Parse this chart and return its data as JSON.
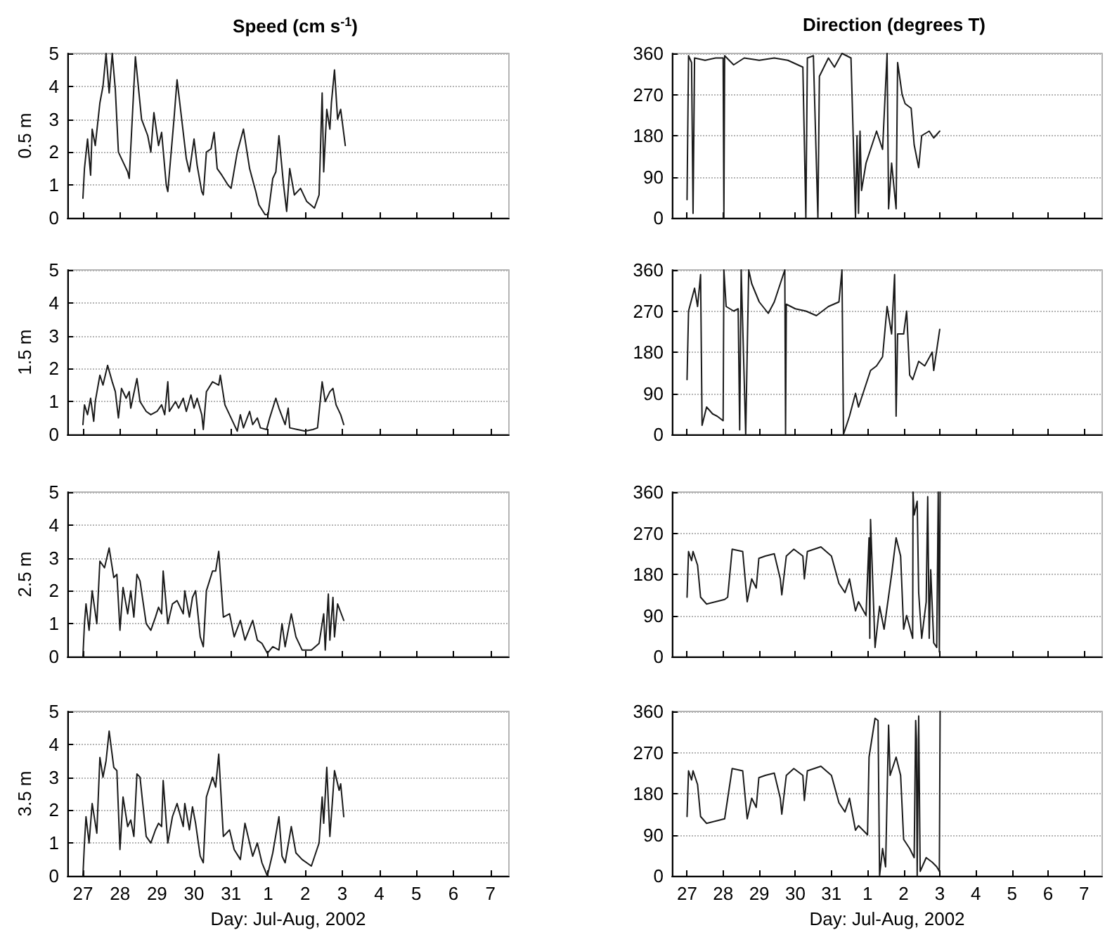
{
  "chart_data": [
    {
      "type": "line",
      "title": "Speed (cm s$^{-1}$)",
      "ylabel": "0.5 m",
      "xlim": [
        "2002-07-26T14:00",
        "2002-08-07T12:00"
      ],
      "ylim": [
        0,
        5
      ],
      "yticks": [
        0,
        1,
        2,
        3,
        4,
        5
      ],
      "xticks": [
        {
          "value": "2002-07-27",
          "label": null
        },
        {
          "value": "2002-07-28",
          "label": null
        },
        {
          "value": "2002-07-29",
          "label": null
        },
        {
          "value": "2002-07-30",
          "label": null
        },
        {
          "value": "2002-07-31",
          "label": null
        },
        {
          "value": "2002-08-01",
          "label": null
        },
        {
          "value": "2002-08-02",
          "label": null
        },
        {
          "value": "2002-08-03",
          "label": null
        },
        {
          "value": "2002-08-04",
          "label": null
        },
        {
          "value": "2002-08-05",
          "label": null
        },
        {
          "value": "2002-08-06",
          "label": null
        },
        {
          "value": "2002-08-07",
          "label": null
        }
      ],
      "tick_labels": "y",
      "grid": "y",
      "marker": "none",
      "series": [
        {
          "color": "#1a1a1a",
          "x": [
            "2002-07-27T00:00",
            "2002-07-27T01:00",
            "2002-07-27T03:00",
            "2002-07-27T05:00",
            "2002-07-27T06:00",
            "2002-07-27T08:00",
            "2002-07-27T11:00",
            "2002-07-27T13:00",
            "2002-07-27T15:00",
            "2002-07-27T17:00",
            "2002-07-27T19:00",
            "2002-07-27T21:00",
            "2002-07-27T23:00",
            "2002-07-28T02:00",
            "2002-07-28T05:00",
            "2002-07-28T06:00",
            "2002-07-28T10:00",
            "2002-07-28T14:00",
            "2002-07-28T18:00",
            "2002-07-28T20:00",
            "2002-07-28T22:00",
            "2002-07-29T01:00",
            "2002-07-29T03:00",
            "2002-07-29T06:00",
            "2002-07-29T07:00",
            "2002-07-29T11:00",
            "2002-07-29T13:00",
            "2002-07-29T16:00",
            "2002-07-29T19:00",
            "2002-07-29T21:00",
            "2002-07-30T00:00",
            "2002-07-30T02:00",
            "2002-07-30T05:00",
            "2002-07-30T06:00",
            "2002-07-30T08:00",
            "2002-07-30T11:00",
            "2002-07-30T13:00",
            "2002-07-30T15:00",
            "2002-07-30T18:00",
            "2002-07-30T22:00",
            "2002-07-31T00:00",
            "2002-07-31T04:00",
            "2002-07-31T08:00",
            "2002-07-31T12:00",
            "2002-07-31T16:00",
            "2002-07-31T18:00",
            "2002-07-31T22:00",
            "2002-08-01T00:00",
            "2002-08-01T03:00",
            "2002-08-01T05:00",
            "2002-08-01T07:00",
            "2002-08-01T10:00",
            "2002-08-01T12:00",
            "2002-08-01T14:00",
            "2002-08-01T17:00",
            "2002-08-01T21:00",
            "2002-08-02T01:00",
            "2002-08-02T06:00",
            "2002-08-02T09:00",
            "2002-08-02T11:00",
            "2002-08-02T12:00",
            "2002-08-02T14:00",
            "2002-08-02T16:00",
            "2002-08-02T17:00",
            "2002-08-02T19:00",
            "2002-08-02T21:00",
            "2002-08-02T23:00",
            "2002-08-03T02:00"
          ],
          "values": [
            0.6,
            1.5,
            2.4,
            1.3,
            2.7,
            2.2,
            3.5,
            4.0,
            5.0,
            3.8,
            5.0,
            3.9,
            2.0,
            1.7,
            1.4,
            1.2,
            4.9,
            3.0,
            2.5,
            2.0,
            3.2,
            2.2,
            2.6,
            1.0,
            0.8,
            3.0,
            4.2,
            3.0,
            1.8,
            1.4,
            2.4,
            1.6,
            0.8,
            0.7,
            2.0,
            2.1,
            2.6,
            1.5,
            1.3,
            1.0,
            0.9,
            2.0,
            2.7,
            1.5,
            0.8,
            0.4,
            0.1,
            0.1,
            1.2,
            1.4,
            2.5,
            1.0,
            0.2,
            1.5,
            0.7,
            0.9,
            0.5,
            0.3,
            0.7,
            3.8,
            1.4,
            3.3,
            2.7,
            3.5,
            4.5,
            3.0,
            3.3,
            2.2
          ]
        }
      ]
    },
    {
      "type": "line",
      "title": "Direction (degrees T)",
      "xlim": [
        "2002-07-26T14:00",
        "2002-08-07T12:00"
      ],
      "ylim": [
        0,
        360
      ],
      "yticks": [
        0,
        90,
        180,
        270,
        360
      ],
      "xticks": [
        {
          "value": "2002-07-27",
          "label": null
        },
        {
          "value": "2002-07-28",
          "label": null
        },
        {
          "value": "2002-07-29",
          "label": null
        },
        {
          "value": "2002-07-30",
          "label": null
        },
        {
          "value": "2002-07-31",
          "label": null
        },
        {
          "value": "2002-08-01",
          "label": null
        },
        {
          "value": "2002-08-02",
          "label": null
        },
        {
          "value": "2002-08-03",
          "label": null
        },
        {
          "value": "2002-08-04",
          "label": null
        },
        {
          "value": "2002-08-05",
          "label": null
        },
        {
          "value": "2002-08-06",
          "label": null
        },
        {
          "value": "2002-08-07",
          "label": null
        }
      ],
      "tick_labels": "y",
      "grid": "y",
      "marker": "none",
      "series": [
        {
          "color": "#1a1a1a",
          "x": [
            "2002-07-27T00:00",
            "2002-07-27T01:00",
            "2002-07-27T03:00",
            "2002-07-27T04:00",
            "2002-07-27T05:00",
            "2002-07-27T12:00",
            "2002-07-27T19:00",
            "2002-07-28T00:00",
            "2002-07-28T00:30",
            "2002-07-28T01:00",
            "2002-07-28T07:00",
            "2002-07-28T14:00",
            "2002-07-29T00:00",
            "2002-07-29T10:00",
            "2002-07-29T19:00",
            "2002-07-30T05:00",
            "2002-07-30T07:00",
            "2002-07-30T08:00",
            "2002-07-30T12:00",
            "2002-07-30T15:00",
            "2002-07-30T16:00",
            "2002-07-30T22:00",
            "2002-07-31T02:00",
            "2002-07-31T07:00",
            "2002-07-31T13:00",
            "2002-07-31T16:00",
            "2002-07-31T17:00",
            "2002-07-31T18:00",
            "2002-07-31T19:00",
            "2002-07-31T20:00",
            "2002-07-31T23:00",
            "2002-08-01T02:00",
            "2002-08-01T06:00",
            "2002-08-01T10:00",
            "2002-08-01T13:00",
            "2002-08-01T14:00",
            "2002-08-01T16:00",
            "2002-08-01T19:00",
            "2002-08-01T20:00",
            "2002-08-01T23:00",
            "2002-08-02T01:00",
            "2002-08-02T05:00",
            "2002-08-02T07:00",
            "2002-08-02T10:00",
            "2002-08-02T12:00",
            "2002-08-02T17:00",
            "2002-08-02T20:00",
            "2002-08-03T00:00"
          ],
          "values": [
            40,
            355,
            340,
            10,
            350,
            345,
            350,
            350,
            0,
            355,
            335,
            350,
            345,
            350,
            345,
            330,
            0,
            350,
            355,
            0,
            310,
            350,
            330,
            360,
            350,
            0,
            180,
            10,
            190,
            60,
            120,
            150,
            190,
            150,
            360,
            20,
            120,
            20,
            340,
            270,
            250,
            240,
            160,
            110,
            180,
            190,
            175,
            190
          ]
        }
      ]
    },
    {
      "type": "line",
      "ylabel": "1.5 m",
      "xlim": [
        "2002-07-26T14:00",
        "2002-08-07T12:00"
      ],
      "ylim": [
        0,
        5
      ],
      "yticks": [
        0,
        1,
        2,
        3,
        4,
        5
      ],
      "xticks": [
        {
          "value": "2002-07-27",
          "label": null
        },
        {
          "value": "2002-07-28",
          "label": null
        },
        {
          "value": "2002-07-29",
          "label": null
        },
        {
          "value": "2002-07-30",
          "label": null
        },
        {
          "value": "2002-07-31",
          "label": null
        },
        {
          "value": "2002-08-01",
          "label": null
        },
        {
          "value": "2002-08-02",
          "label": null
        },
        {
          "value": "2002-08-03",
          "label": null
        },
        {
          "value": "2002-08-04",
          "label": null
        },
        {
          "value": "2002-08-05",
          "label": null
        },
        {
          "value": "2002-08-06",
          "label": null
        },
        {
          "value": "2002-08-07",
          "label": null
        }
      ],
      "tick_labels": "y",
      "grid": "y",
      "marker": "none",
      "series": [
        {
          "color": "#1a1a1a",
          "x": [
            "2002-07-27T00:00",
            "2002-07-27T01:00",
            "2002-07-27T03:00",
            "2002-07-27T05:00",
            "2002-07-27T07:00",
            "2002-07-27T08:00",
            "2002-07-27T11:00",
            "2002-07-27T13:00",
            "2002-07-27T16:00",
            "2002-07-27T19:00",
            "2002-07-27T21:00",
            "2002-07-27T23:00",
            "2002-07-28T01:00",
            "2002-07-28T04:00",
            "2002-07-28T06:00",
            "2002-07-28T07:00",
            "2002-07-28T11:00",
            "2002-07-28T13:00",
            "2002-07-28T17:00",
            "2002-07-28T20:00",
            "2002-07-29T00:00",
            "2002-07-29T03:00",
            "2002-07-29T05:00",
            "2002-07-29T07:00",
            "2002-07-29T08:00",
            "2002-07-29T12:00",
            "2002-07-29T14:00",
            "2002-07-29T17:00",
            "2002-07-29T19:00",
            "2002-07-29T22:00",
            "2002-07-30T00:00",
            "2002-07-30T02:00",
            "2002-07-30T05:00",
            "2002-07-30T06:00",
            "2002-07-30T08:00",
            "2002-07-30T12:00",
            "2002-07-30T16:00",
            "2002-07-30T17:00",
            "2002-07-30T20:00",
            "2002-07-31T00:00",
            "2002-07-31T04:00",
            "2002-07-31T06:00",
            "2002-07-31T08:00",
            "2002-07-31T12:00",
            "2002-07-31T14:00",
            "2002-07-31T17:00",
            "2002-07-31T19:00",
            "2002-07-31T23:00",
            "2002-08-01T01:00",
            "2002-08-01T05:00",
            "2002-08-01T07:00",
            "2002-08-01T11:00",
            "2002-08-01T13:00",
            "2002-08-01T14:00",
            "2002-08-01T19:00",
            "2002-08-02T00:00",
            "2002-08-02T05:00",
            "2002-08-02T08:00",
            "2002-08-02T11:00",
            "2002-08-02T13:00",
            "2002-08-02T16:00",
            "2002-08-02T18:00",
            "2002-08-02T20:00",
            "2002-08-02T23:00",
            "2002-08-03T01:00"
          ],
          "values": [
            0.3,
            0.9,
            0.6,
            1.1,
            0.4,
            1.0,
            1.8,
            1.5,
            2.1,
            1.6,
            1.3,
            0.5,
            1.4,
            1.1,
            1.3,
            0.8,
            1.7,
            1.0,
            0.7,
            0.6,
            0.7,
            0.9,
            0.6,
            1.6,
            0.7,
            1.0,
            0.8,
            1.1,
            0.7,
            1.2,
            0.8,
            1.1,
            0.6,
            0.15,
            1.3,
            1.6,
            1.5,
            1.8,
            0.9,
            0.5,
            0.1,
            0.6,
            0.2,
            0.7,
            0.3,
            0.5,
            0.2,
            0.15,
            0.5,
            1.1,
            0.8,
            0.3,
            0.8,
            0.2,
            0.15,
            0.1,
            0.15,
            0.2,
            1.6,
            1.0,
            1.3,
            1.4,
            0.9,
            0.6,
            0.3
          ]
        }
      ]
    },
    {
      "type": "line",
      "xlim": [
        "2002-07-26T14:00",
        "2002-08-07T12:00"
      ],
      "ylim": [
        0,
        360
      ],
      "yticks": [
        0,
        90,
        180,
        270,
        360
      ],
      "xticks": [
        {
          "value": "2002-07-27",
          "label": null
        },
        {
          "value": "2002-07-28",
          "label": null
        },
        {
          "value": "2002-07-29",
          "label": null
        },
        {
          "value": "2002-07-30",
          "label": null
        },
        {
          "value": "2002-07-31",
          "label": null
        },
        {
          "value": "2002-08-01",
          "label": null
        },
        {
          "value": "2002-08-02",
          "label": null
        },
        {
          "value": "2002-08-03",
          "label": null
        },
        {
          "value": "2002-08-04",
          "label": null
        },
        {
          "value": "2002-08-05",
          "label": null
        },
        {
          "value": "2002-08-06",
          "label": null
        },
        {
          "value": "2002-08-07",
          "label": null
        }
      ],
      "tick_labels": "y",
      "grid": "y",
      "marker": "none",
      "series": [
        {
          "color": "#1a1a1a",
          "x": [
            "2002-07-27T00:00",
            "2002-07-27T01:00",
            "2002-07-27T05:00",
            "2002-07-27T07:00",
            "2002-07-27T09:00",
            "2002-07-27T10:00",
            "2002-07-27T13:00",
            "2002-07-27T17:00",
            "2002-07-27T20:00",
            "2002-07-28T00:00",
            "2002-07-28T00:30",
            "2002-07-28T02:00",
            "2002-07-28T07:00",
            "2002-07-28T10:00",
            "2002-07-28T11:00",
            "2002-07-28T12:00",
            "2002-07-28T15:00",
            "2002-07-28T17:00",
            "2002-07-28T19:00",
            "2002-07-29T00:00",
            "2002-07-29T06:00",
            "2002-07-29T10:00",
            "2002-07-29T14:00",
            "2002-07-29T17:00",
            "2002-07-29T17:30",
            "2002-07-29T18:00",
            "2002-07-30T00:00",
            "2002-07-30T07:00",
            "2002-07-30T14:00",
            "2002-07-30T22:00",
            "2002-07-31T05:00",
            "2002-07-31T07:00",
            "2002-07-31T08:00",
            "2002-07-31T12:00",
            "2002-07-31T16:00",
            "2002-07-31T18:00",
            "2002-07-31T23:00",
            "2002-08-01T02:00",
            "2002-08-01T06:00",
            "2002-08-01T10:00",
            "2002-08-01T13:00",
            "2002-08-01T16:00",
            "2002-08-01T18:00",
            "2002-08-01T19:00",
            "2002-08-01T20:00",
            "2002-08-02T00:00",
            "2002-08-02T02:00",
            "2002-08-02T04:00",
            "2002-08-02T06:00",
            "2002-08-02T10:00",
            "2002-08-02T14:00",
            "2002-08-02T19:00",
            "2002-08-02T20:00",
            "2002-08-03T00:00"
          ],
          "values": [
            120,
            270,
            320,
            280,
            350,
            20,
            60,
            45,
            40,
            30,
            360,
            280,
            270,
            275,
            10,
            360,
            0,
            360,
            330,
            290,
            265,
            290,
            330,
            360,
            0,
            285,
            275,
            270,
            260,
            280,
            290,
            360,
            0,
            40,
            90,
            60,
            110,
            140,
            150,
            170,
            280,
            220,
            350,
            40,
            220,
            220,
            270,
            130,
            120,
            160,
            150,
            180,
            140,
            230
          ]
        }
      ]
    },
    {
      "type": "line",
      "ylabel": "2.5 m",
      "xlim": [
        "2002-07-26T14:00",
        "2002-08-07T12:00"
      ],
      "ylim": [
        0,
        5
      ],
      "yticks": [
        0,
        1,
        2,
        3,
        4,
        5
      ],
      "xticks": [
        {
          "value": "2002-07-27",
          "label": null
        },
        {
          "value": "2002-07-28",
          "label": null
        },
        {
          "value": "2002-07-29",
          "label": null
        },
        {
          "value": "2002-07-30",
          "label": null
        },
        {
          "value": "2002-07-31",
          "label": null
        },
        {
          "value": "2002-08-01",
          "label": null
        },
        {
          "value": "2002-08-02",
          "label": null
        },
        {
          "value": "2002-08-03",
          "label": null
        },
        {
          "value": "2002-08-04",
          "label": null
        },
        {
          "value": "2002-08-05",
          "label": null
        },
        {
          "value": "2002-08-06",
          "label": null
        },
        {
          "value": "2002-08-07",
          "label": null
        }
      ],
      "tick_labels": "y",
      "grid": "y",
      "marker": "none",
      "series": [
        {
          "color": "#1a1a1a",
          "x": [
            "2002-07-27T00:00",
            "2002-07-27T01:00",
            "2002-07-27T02:00",
            "2002-07-27T04:00",
            "2002-07-27T06:00",
            "2002-07-27T09:00",
            "2002-07-27T11:00",
            "2002-07-27T14:00",
            "2002-07-27T17:00",
            "2002-07-27T20:00",
            "2002-07-27T22:00",
            "2002-07-28T00:00",
            "2002-07-28T02:00",
            "2002-07-28T05:00",
            "2002-07-28T07:00",
            "2002-07-28T09:00",
            "2002-07-28T11:00",
            "2002-07-28T13:00",
            "2002-07-28T17:00",
            "2002-07-28T20:00",
            "2002-07-28T23:00",
            "2002-07-29T01:00",
            "2002-07-29T03:00",
            "2002-07-29T04:00",
            "2002-07-29T07:00",
            "2002-07-29T10:00",
            "2002-07-29T13:00",
            "2002-07-29T17:00",
            "2002-07-29T18:00",
            "2002-07-29T21:00",
            "2002-07-29T23:00",
            "2002-07-30T01:00",
            "2002-07-30T04:00",
            "2002-07-30T06:00",
            "2002-07-30T08:00",
            "2002-07-30T12:00",
            "2002-07-30T14:00",
            "2002-07-30T16:00",
            "2002-07-30T19:00",
            "2002-07-30T23:00",
            "2002-07-31T02:00",
            "2002-07-31T06:00",
            "2002-07-31T09:00",
            "2002-07-31T14:00",
            "2002-07-31T17:00",
            "2002-07-31T20:00",
            "2002-07-31T23:30",
            "2002-08-01T03:00",
            "2002-08-01T07:00",
            "2002-08-01T09:00",
            "2002-08-01T11:00",
            "2002-08-01T15:00",
            "2002-08-01T18:00",
            "2002-08-01T22:00",
            "2002-08-02T04:00",
            "2002-08-02T09:00",
            "2002-08-02T12:00",
            "2002-08-02T13:00",
            "2002-08-02T15:00",
            "2002-08-02T16:00",
            "2002-08-02T18:00",
            "2002-08-02T19:00",
            "2002-08-02T21:00",
            "2002-08-03T01:00"
          ],
          "values": [
            0,
            1.0,
            1.6,
            0.8,
            2.0,
            1.0,
            2.9,
            2.7,
            3.3,
            2.4,
            2.5,
            0.8,
            2.1,
            1.3,
            2.0,
            1.2,
            2.5,
            2.3,
            1.0,
            0.8,
            1.2,
            1.5,
            1.3,
            2.6,
            1.0,
            1.6,
            1.7,
            1.3,
            2.0,
            1.2,
            1.8,
            2.0,
            0.6,
            0.3,
            2.0,
            2.6,
            2.6,
            3.2,
            1.2,
            1.3,
            0.6,
            1.1,
            0.5,
            1.1,
            0.5,
            0.4,
            0.1,
            0.3,
            0.2,
            1.0,
            0.3,
            1.3,
            0.6,
            0.2,
            0.2,
            0.4,
            1.3,
            0.2,
            1.9,
            0.5,
            1.8,
            0.6,
            1.6,
            1.1
          ]
        }
      ]
    },
    {
      "type": "line",
      "xlim": [
        "2002-07-26T14:00",
        "2002-08-07T12:00"
      ],
      "ylim": [
        0,
        360
      ],
      "yticks": [
        0,
        90,
        180,
        270,
        360
      ],
      "xticks": [
        {
          "value": "2002-07-27",
          "label": null
        },
        {
          "value": "2002-07-28",
          "label": null
        },
        {
          "value": "2002-07-29",
          "label": null
        },
        {
          "value": "2002-07-30",
          "label": null
        },
        {
          "value": "2002-07-31",
          "label": null
        },
        {
          "value": "2002-08-01",
          "label": null
        },
        {
          "value": "2002-08-02",
          "label": null
        },
        {
          "value": "2002-08-03",
          "label": null
        },
        {
          "value": "2002-08-04",
          "label": null
        },
        {
          "value": "2002-08-05",
          "label": null
        },
        {
          "value": "2002-08-06",
          "label": null
        },
        {
          "value": "2002-08-07",
          "label": null
        }
      ],
      "tick_labels": "y",
      "grid": "y",
      "marker": "none",
      "series": [
        {
          "color": "#1a1a1a",
          "x": [
            "2002-07-27T00:00",
            "2002-07-27T01:00",
            "2002-07-27T03:00",
            "2002-07-27T04:00",
            "2002-07-27T07:00",
            "2002-07-27T09:00",
            "2002-07-27T13:00",
            "2002-07-27T19:00",
            "2002-07-28T01:00",
            "2002-07-28T03:00",
            "2002-07-28T06:00",
            "2002-07-28T13:00",
            "2002-07-28T16:00",
            "2002-07-28T19:00",
            "2002-07-28T22:00",
            "2002-07-28T23:45",
            "2002-07-29T04:00",
            "2002-07-29T10:00",
            "2002-07-29T14:00",
            "2002-07-29T15:00",
            "2002-07-29T18:00",
            "2002-07-29T23:00",
            "2002-07-30T05:00",
            "2002-07-30T06:00",
            "2002-07-30T08:00",
            "2002-07-30T17:00",
            "2002-07-31T00:00",
            "2002-07-31T05:00",
            "2002-07-31T09:00",
            "2002-07-31T12:00",
            "2002-07-31T16:00",
            "2002-07-31T18:00",
            "2002-07-31T23:00",
            "2002-08-01T01:00",
            "2002-08-01T01:30",
            "2002-08-01T02:00",
            "2002-08-01T05:00",
            "2002-08-01T08:00",
            "2002-08-01T11:00",
            "2002-08-01T16:00",
            "2002-08-01T19:00",
            "2002-08-01T22:00",
            "2002-08-02T00:00",
            "2002-08-02T02:00",
            "2002-08-02T06:00",
            "2002-08-02T06:15",
            "2002-08-02T07:00",
            "2002-08-02T09:00",
            "2002-08-02T10:00",
            "2002-08-02T12:00",
            "2002-08-02T15:00",
            "2002-08-02T16:00",
            "2002-08-02T17:00",
            "2002-08-02T18:00",
            "2002-08-02T20:00",
            "2002-08-02T22:00",
            "2002-08-02T23:00",
            "2002-08-02T23:45",
            "2002-08-03T00:15"
          ],
          "values": [
            130,
            230,
            210,
            230,
            200,
            130,
            115,
            120,
            125,
            130,
            235,
            230,
            120,
            170,
            150,
            215,
            220,
            225,
            170,
            135,
            220,
            235,
            220,
            170,
            230,
            240,
            220,
            160,
            140,
            170,
            100,
            120,
            90,
            260,
            40,
            300,
            20,
            110,
            60,
            180,
            260,
            220,
            60,
            90,
            40,
            360,
            310,
            340,
            140,
            40,
            120,
            350,
            40,
            190,
            30,
            20,
            360,
            10,
            360
          ]
        }
      ]
    },
    {
      "type": "line",
      "ylabel": "3.5 m",
      "xlabel": "Day: Jul-Aug, 2002",
      "xlim": [
        "2002-07-26T14:00",
        "2002-08-07T12:00"
      ],
      "ylim": [
        0,
        5
      ],
      "yticks": [
        0,
        1,
        2,
        3,
        4,
        5
      ],
      "xticks": [
        {
          "value": "2002-07-27",
          "label": "27"
        },
        {
          "value": "2002-07-28",
          "label": "28"
        },
        {
          "value": "2002-07-29",
          "label": "29"
        },
        {
          "value": "2002-07-30",
          "label": "30"
        },
        {
          "value": "2002-07-31",
          "label": "31"
        },
        {
          "value": "2002-08-01",
          "label": "1"
        },
        {
          "value": "2002-08-02",
          "label": "2"
        },
        {
          "value": "2002-08-03",
          "label": "3"
        },
        {
          "value": "2002-08-04",
          "label": "4"
        },
        {
          "value": "2002-08-05",
          "label": "5"
        },
        {
          "value": "2002-08-06",
          "label": "6"
        },
        {
          "value": "2002-08-07",
          "label": "7"
        }
      ],
      "grid": "y",
      "marker": "none",
      "series": [
        {
          "color": "#1a1a1a",
          "x": [
            "2002-07-27T00:00",
            "2002-07-27T01:00",
            "2002-07-27T02:00",
            "2002-07-27T04:00",
            "2002-07-27T06:00",
            "2002-07-27T09:00",
            "2002-07-27T11:00",
            "2002-07-27T13:00",
            "2002-07-27T15:00",
            "2002-07-27T17:00",
            "2002-07-27T20:00",
            "2002-07-27T22:00",
            "2002-07-28T00:00",
            "2002-07-28T02:00",
            "2002-07-28T05:00",
            "2002-07-28T07:00",
            "2002-07-28T09:00",
            "2002-07-28T11:00",
            "2002-07-28T13:00",
            "2002-07-28T17:00",
            "2002-07-28T20:00",
            "2002-07-28T23:00",
            "2002-07-29T01:00",
            "2002-07-29T03:00",
            "2002-07-29T04:00",
            "2002-07-29T07:00",
            "2002-07-29T10:00",
            "2002-07-29T13:00",
            "2002-07-29T17:00",
            "2002-07-29T18:00",
            "2002-07-29T21:00",
            "2002-07-29T23:00",
            "2002-07-30T01:00",
            "2002-07-30T04:00",
            "2002-07-30T06:00",
            "2002-07-30T08:00",
            "2002-07-30T12:00",
            "2002-07-30T14:00",
            "2002-07-30T16:00",
            "2002-07-30T19:00",
            "2002-07-30T23:00",
            "2002-07-31T02:00",
            "2002-07-31T06:00",
            "2002-07-31T09:00",
            "2002-07-31T14:00",
            "2002-07-31T17:00",
            "2002-07-31T20:00",
            "2002-07-31T23:30",
            "2002-08-01T03:00",
            "2002-08-01T07:00",
            "2002-08-01T09:00",
            "2002-08-01T11:00",
            "2002-08-01T15:00",
            "2002-08-01T18:00",
            "2002-08-01T22:00",
            "2002-08-02T04:00",
            "2002-08-02T09:00",
            "2002-08-02T11:00",
            "2002-08-02T12:00",
            "2002-08-02T14:00",
            "2002-08-02T16:00",
            "2002-08-02T18:00",
            "2002-08-02T19:00",
            "2002-08-02T22:00",
            "2002-08-02T23:00",
            "2002-08-03T01:00"
          ],
          "values": [
            0,
            1.0,
            1.8,
            1.0,
            2.2,
            1.3,
            3.6,
            3.0,
            3.5,
            4.4,
            3.3,
            3.2,
            0.8,
            2.4,
            1.5,
            1.7,
            1.2,
            3.1,
            3.0,
            1.2,
            1.0,
            1.4,
            1.6,
            1.5,
            2.9,
            1.0,
            1.8,
            2.2,
            1.5,
            2.2,
            1.4,
            2.1,
            1.6,
            0.6,
            0.4,
            2.4,
            3.0,
            2.7,
            3.7,
            1.2,
            1.4,
            0.8,
            0.5,
            1.6,
            0.6,
            1.0,
            0.4,
            0.0,
            0.7,
            1.8,
            0.6,
            0.4,
            1.5,
            0.7,
            0.5,
            0.3,
            1.0,
            2.4,
            1.6,
            3.3,
            1.2,
            2.5,
            3.2,
            2.6,
            2.8,
            1.8
          ]
        }
      ]
    },
    {
      "type": "line",
      "xlabel": "Day: Jul-Aug, 2002",
      "xlim": [
        "2002-07-26T14:00",
        "2002-08-07T12:00"
      ],
      "ylim": [
        0,
        360
      ],
      "yticks": [
        0,
        90,
        180,
        270,
        360
      ],
      "xticks": [
        {
          "value": "2002-07-27",
          "label": "27"
        },
        {
          "value": "2002-07-28",
          "label": "28"
        },
        {
          "value": "2002-07-29",
          "label": "29"
        },
        {
          "value": "2002-07-30",
          "label": "30"
        },
        {
          "value": "2002-07-31",
          "label": "31"
        },
        {
          "value": "2002-08-01",
          "label": "1"
        },
        {
          "value": "2002-08-02",
          "label": "2"
        },
        {
          "value": "2002-08-03",
          "label": "3"
        },
        {
          "value": "2002-08-04",
          "label": "4"
        },
        {
          "value": "2002-08-05",
          "label": "5"
        },
        {
          "value": "2002-08-06",
          "label": "6"
        },
        {
          "value": "2002-08-07",
          "label": "7"
        }
      ],
      "grid": "y",
      "marker": "none",
      "series": [
        {
          "color": "#1a1a1a",
          "x": [
            "2002-07-27T00:00",
            "2002-07-27T01:00",
            "2002-07-27T03:00",
            "2002-07-27T04:00",
            "2002-07-27T07:00",
            "2002-07-27T09:00",
            "2002-07-27T13:00",
            "2002-07-27T19:00",
            "2002-07-28T01:00",
            "2002-07-28T06:00",
            "2002-07-28T13:00",
            "2002-07-28T16:00",
            "2002-07-28T19:00",
            "2002-07-28T22:00",
            "2002-07-28T23:45",
            "2002-07-29T04:00",
            "2002-07-29T10:00",
            "2002-07-29T14:00",
            "2002-07-29T15:00",
            "2002-07-29T18:00",
            "2002-07-29T23:00",
            "2002-07-30T05:00",
            "2002-07-30T06:00",
            "2002-07-30T08:00",
            "2002-07-30T17:00",
            "2002-07-31T00:00",
            "2002-07-31T05:00",
            "2002-07-31T09:00",
            "2002-07-31T12:00",
            "2002-07-31T16:00",
            "2002-07-31T18:00",
            "2002-08-01T00:00",
            "2002-08-01T01:00",
            "2002-08-01T05:00",
            "2002-08-01T07:00",
            "2002-08-01T08:00",
            "2002-08-01T10:00",
            "2002-08-01T12:00",
            "2002-08-01T14:00",
            "2002-08-01T15:00",
            "2002-08-01T19:00",
            "2002-08-01T22:00",
            "2002-08-02T00:00",
            "2002-08-02T04:00",
            "2002-08-02T07:00",
            "2002-08-02T08:00",
            "2002-08-02T08:30",
            "2002-08-02T09:00",
            "2002-08-02T10:00",
            "2002-08-02T11:00",
            "2002-08-02T15:00",
            "2002-08-02T19:00",
            "2002-08-02T22:00",
            "2002-08-02T23:45",
            "2002-08-03T00:15"
          ],
          "values": [
            130,
            230,
            210,
            230,
            200,
            130,
            115,
            120,
            125,
            235,
            230,
            125,
            170,
            150,
            215,
            220,
            225,
            170,
            135,
            220,
            235,
            220,
            165,
            230,
            240,
            220,
            160,
            140,
            170,
            100,
            110,
            90,
            260,
            345,
            340,
            0,
            60,
            20,
            330,
            220,
            260,
            220,
            80,
            60,
            40,
            340,
            300,
            0,
            350,
            10,
            40,
            30,
            20,
            10,
            360
          ]
        }
      ]
    }
  ]
}
